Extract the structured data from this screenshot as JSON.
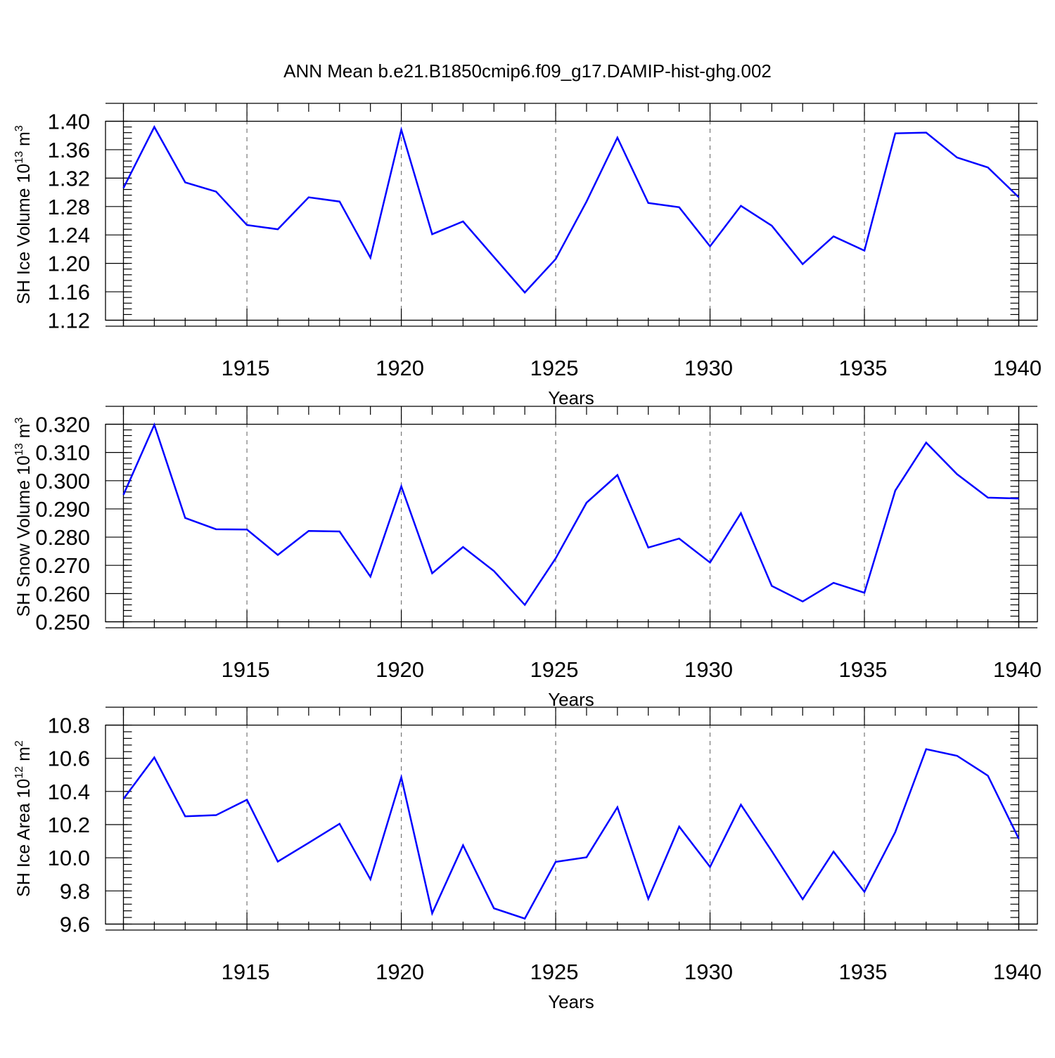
{
  "title": "ANN Mean b.e21.B1850cmip6.f09_g17.DAMIP-hist-ghg.002",
  "colors": {
    "line": "#0000ff",
    "grid": "#777777",
    "axis": "#000000"
  },
  "chart_data": [
    {
      "type": "line",
      "ylabel": {
        "main": "SH Ice Volume 10",
        "sup": "13",
        "mid": " m",
        "sup2": "3"
      },
      "xlabel": "Years",
      "xlim": [
        1911,
        1940
      ],
      "ylim": [
        1.12,
        1.4
      ],
      "grid": "vertical-dashed",
      "xticks": [
        1915,
        1920,
        1925,
        1930,
        1935,
        1940
      ],
      "xtick_labels": [
        "1915",
        "1920",
        "1925",
        "1930",
        "1935",
        "1940"
      ],
      "yticks": [
        1.12,
        1.16,
        1.2,
        1.24,
        1.28,
        1.32,
        1.36,
        1.4
      ],
      "ytick_labels": [
        "1.12",
        "1.16",
        "1.20",
        "1.24",
        "1.28",
        "1.32",
        "1.36",
        "1.40"
      ],
      "yminor_step": 0.008,
      "x": [
        1911,
        1912,
        1913,
        1914,
        1915,
        1916,
        1917,
        1918,
        1919,
        1920,
        1921,
        1922,
        1923,
        1924,
        1925,
        1926,
        1927,
        1928,
        1929,
        1930,
        1931,
        1932,
        1933,
        1934,
        1935,
        1936,
        1937,
        1938,
        1939,
        1940
      ],
      "series": [
        {
          "values": [
            1.306,
            1.392,
            1.314,
            1.301,
            1.254,
            1.248,
            1.293,
            1.287,
            1.208,
            1.388,
            1.241,
            1.259,
            1.209,
            1.159,
            1.206,
            1.287,
            1.377,
            1.285,
            1.279,
            1.224,
            1.281,
            1.253,
            1.199,
            1.238,
            1.218,
            1.383,
            1.384,
            1.349,
            1.335,
            1.293
          ]
        }
      ]
    },
    {
      "type": "line",
      "ylabel": {
        "main": "SH Snow Volume 10",
        "sup": "13",
        "mid": " m",
        "sup2": "3"
      },
      "xlabel": "Years",
      "xlim": [
        1911,
        1940
      ],
      "ylim": [
        0.25,
        0.32
      ],
      "grid": "vertical-dashed",
      "xticks": [
        1915,
        1920,
        1925,
        1930,
        1935,
        1940
      ],
      "xtick_labels": [
        "1915",
        "1920",
        "1925",
        "1930",
        "1935",
        "1940"
      ],
      "yticks": [
        0.25,
        0.26,
        0.27,
        0.28,
        0.29,
        0.3,
        0.31,
        0.32
      ],
      "ytick_labels": [
        "0.250",
        "0.260",
        "0.270",
        "0.280",
        "0.290",
        "0.300",
        "0.310",
        "0.320"
      ],
      "yminor_step": 0.002,
      "x": [
        1911,
        1912,
        1913,
        1914,
        1915,
        1916,
        1917,
        1918,
        1919,
        1920,
        1921,
        1922,
        1923,
        1924,
        1925,
        1926,
        1927,
        1928,
        1929,
        1930,
        1931,
        1932,
        1933,
        1934,
        1935,
        1936,
        1937,
        1938,
        1939,
        1940
      ],
      "series": [
        {
          "values": [
            0.295,
            0.3198,
            0.2868,
            0.2828,
            0.2827,
            0.2737,
            0.2822,
            0.282,
            0.266,
            0.298,
            0.2672,
            0.2765,
            0.268,
            0.256,
            0.2725,
            0.2922,
            0.302,
            0.2763,
            0.2795,
            0.271,
            0.2885,
            0.2627,
            0.2572,
            0.2638,
            0.2603,
            0.2965,
            0.3135,
            0.3023,
            0.294,
            0.2937
          ]
        }
      ]
    },
    {
      "type": "line",
      "ylabel": {
        "main": "SH Ice Area 10",
        "sup": "12",
        "mid": " m",
        "sup2": "2"
      },
      "xlabel": "Years",
      "xlim": [
        1911,
        1940
      ],
      "ylim": [
        9.6,
        10.8
      ],
      "grid": "vertical-dashed",
      "xticks": [
        1915,
        1920,
        1925,
        1930,
        1935,
        1940
      ],
      "xtick_labels": [
        "1915",
        "1920",
        "1925",
        "1930",
        "1935",
        "1940"
      ],
      "yticks": [
        9.6,
        9.8,
        10.0,
        10.2,
        10.4,
        10.6,
        10.8
      ],
      "ytick_labels": [
        "9.6",
        "9.8",
        "10.0",
        "10.2",
        "10.4",
        "10.6",
        "10.8"
      ],
      "yminor_step": 0.04,
      "x": [
        1911,
        1912,
        1913,
        1914,
        1915,
        1916,
        1917,
        1918,
        1919,
        1920,
        1921,
        1922,
        1923,
        1924,
        1925,
        1926,
        1927,
        1928,
        1929,
        1930,
        1931,
        1932,
        1933,
        1934,
        1935,
        1936,
        1937,
        1938,
        1939,
        1940
      ],
      "series": [
        {
          "values": [
            10.355,
            10.605,
            10.25,
            10.257,
            10.35,
            9.977,
            10.09,
            10.205,
            9.87,
            10.485,
            9.665,
            10.075,
            9.695,
            9.633,
            9.975,
            10.003,
            10.305,
            9.752,
            10.188,
            9.945,
            10.32,
            10.04,
            9.75,
            10.037,
            9.795,
            10.155,
            10.655,
            10.615,
            10.495,
            10.115
          ]
        }
      ]
    }
  ]
}
